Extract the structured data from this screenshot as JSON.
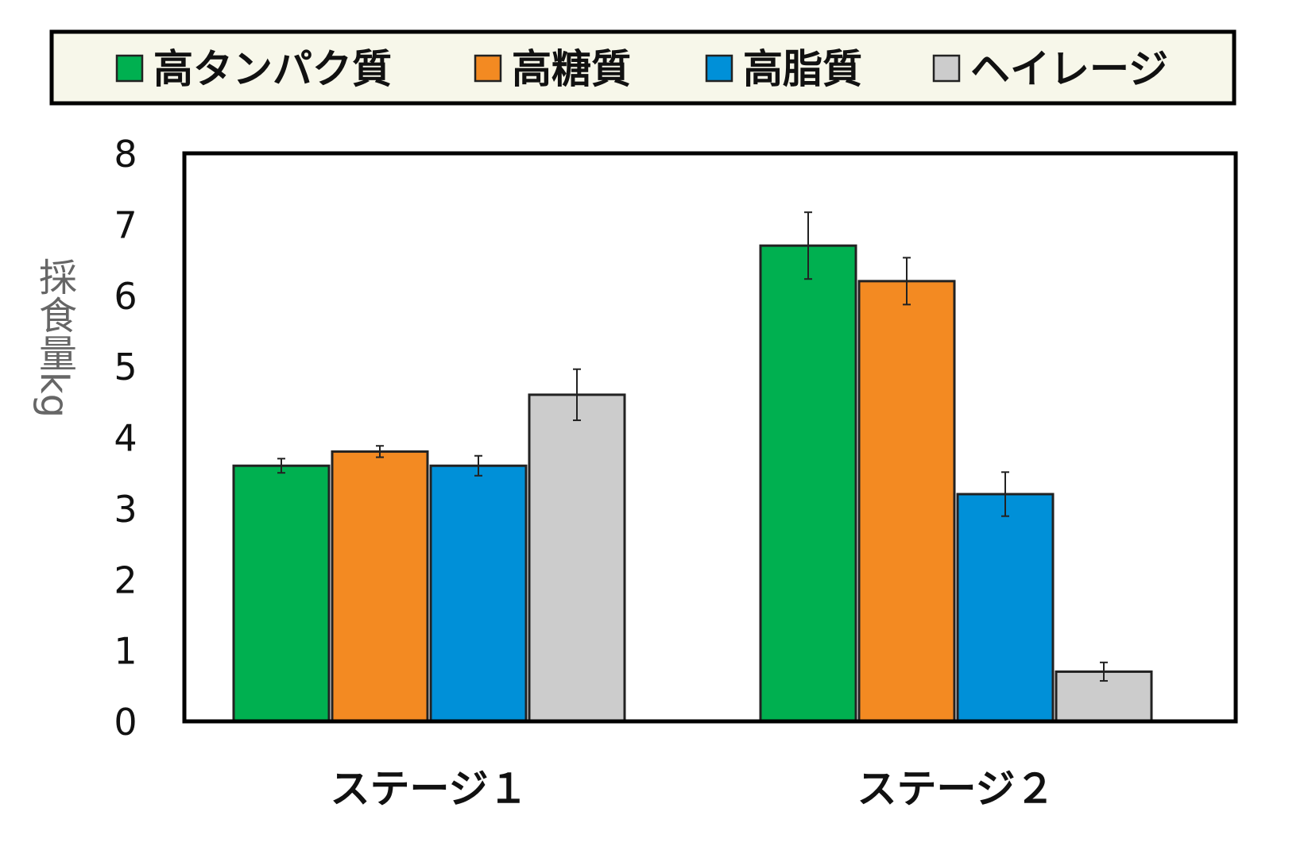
{
  "chart_data": {
    "type": "bar",
    "title": "",
    "xlabel": "",
    "ylabel": "採食量kg",
    "ylim": [
      0,
      8
    ],
    "yticks": [
      "0",
      "1",
      "2",
      "3",
      "4",
      "5",
      "6",
      "7",
      "8"
    ],
    "categories": [
      "ステージ１",
      "ステージ２"
    ],
    "series": [
      {
        "name": "高タンパク質",
        "color": "#00b050",
        "values": [
          3.6,
          6.7
        ],
        "errors": [
          0.1,
          0.47
        ]
      },
      {
        "name": "高糖質",
        "color": "#f38a22",
        "values": [
          3.8,
          6.2
        ],
        "errors": [
          0.08,
          0.33
        ]
      },
      {
        "name": "高脂質",
        "color": "#0090d8",
        "values": [
          3.6,
          3.2
        ],
        "errors": [
          0.14,
          0.31
        ]
      },
      {
        "name": "ヘイレージ",
        "color": "#cccccc",
        "values": [
          4.6,
          0.7
        ],
        "errors": [
          0.36,
          0.13
        ]
      }
    ],
    "grid": false,
    "legend_position": "top"
  }
}
